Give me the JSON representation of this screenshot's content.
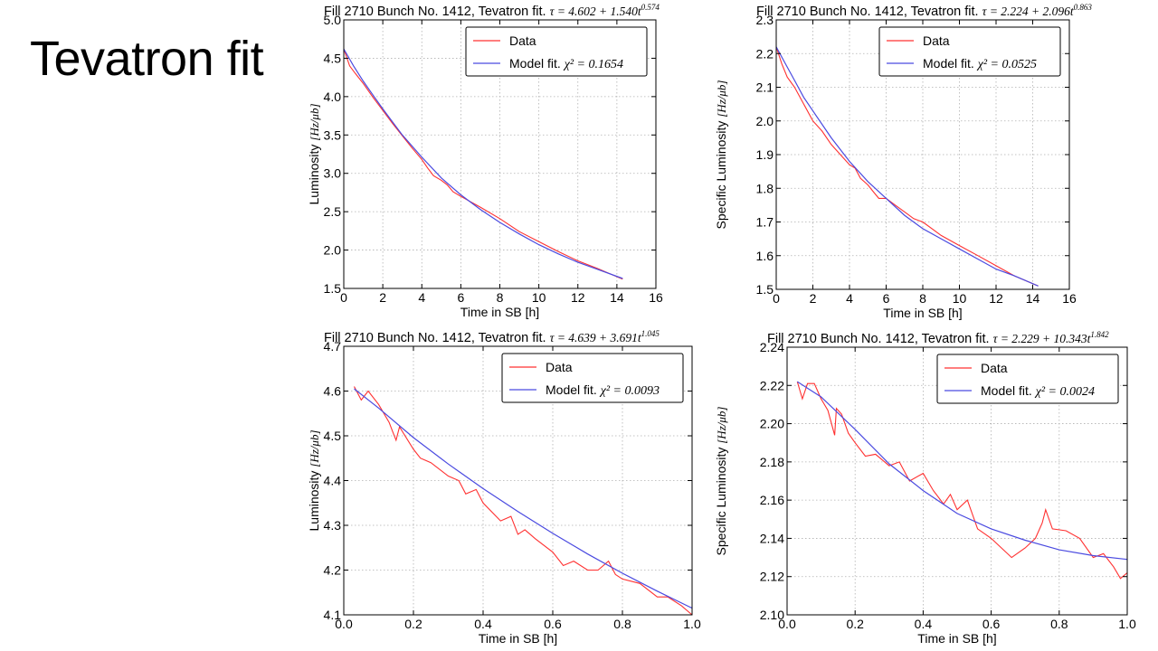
{
  "slide": {
    "title": "Tevatron fit"
  },
  "chart_data": [
    {
      "type": "line",
      "title_text": "Fill 2710 Bunch No. 1412, Tevatron fit.",
      "title_formula": "τ = 4.602 + 1.540t",
      "title_exponent": "0.574",
      "xlabel": "Time in SB [h]",
      "ylabel_text": "Luminosity ",
      "ylabel_unit": "[Hz/μb]",
      "xlim": [
        0,
        16
      ],
      "ylim": [
        1.5,
        5.0
      ],
      "xticks": [
        0,
        2,
        4,
        6,
        8,
        10,
        12,
        14,
        16
      ],
      "yticks": [
        1.5,
        2.0,
        2.5,
        3.0,
        3.5,
        4.0,
        4.5,
        5.0
      ],
      "xtick_labels": [
        "0",
        "2",
        "4",
        "6",
        "8",
        "10",
        "12",
        "14",
        "16"
      ],
      "ytick_labels": [
        "1.5",
        "2.0",
        "2.5",
        "3.0",
        "3.5",
        "4.0",
        "4.5",
        "5.0"
      ],
      "grid": true,
      "legend_position": "top-right",
      "legend": [
        {
          "label": "Data",
          "color": "#ff3030"
        },
        {
          "label": "Model fit. ",
          "math": "χ² = 0.1654",
          "color": "#4a4ae0"
        }
      ],
      "series": [
        {
          "name": "Data",
          "color": "#ff3030",
          "x": [
            0.0,
            0.3,
            0.6,
            1.0,
            1.5,
            2.0,
            2.5,
            3.0,
            3.5,
            4.0,
            4.3,
            4.6,
            5.0,
            5.3,
            5.6,
            6.0,
            7.0,
            8.0,
            9.0,
            10.0,
            11.0,
            12.0,
            13.0,
            14.3
          ],
          "y": [
            4.62,
            4.4,
            4.3,
            4.17,
            3.99,
            3.82,
            3.65,
            3.49,
            3.33,
            3.18,
            3.07,
            2.97,
            2.91,
            2.85,
            2.76,
            2.7,
            2.56,
            2.41,
            2.24,
            2.11,
            1.98,
            1.86,
            1.76,
            1.62
          ]
        },
        {
          "name": "Model fit.",
          "color": "#4a4ae0",
          "x": [
            0.0,
            0.5,
            1.0,
            1.5,
            2.0,
            3.0,
            4.0,
            5.0,
            6.0,
            7.0,
            8.0,
            9.0,
            10.0,
            11.0,
            12.0,
            13.0,
            14.3
          ],
          "y": [
            4.62,
            4.4,
            4.2,
            4.02,
            3.84,
            3.5,
            3.21,
            2.94,
            2.72,
            2.53,
            2.36,
            2.21,
            2.07,
            1.95,
            1.84,
            1.75,
            1.63
          ]
        }
      ]
    },
    {
      "type": "line",
      "title_text": "Fill 2710 Bunch No. 1412, Tevatron fit.",
      "title_formula": "τ = 2.224 + 2.096t",
      "title_exponent": "0.863",
      "xlabel": "Time in SB [h]",
      "ylabel_text": "Specific Luminosity ",
      "ylabel_unit": "[Hz/μb]",
      "xlim": [
        0,
        16
      ],
      "ylim": [
        1.5,
        2.3
      ],
      "xticks": [
        0,
        2,
        4,
        6,
        8,
        10,
        12,
        14,
        16
      ],
      "yticks": [
        1.5,
        1.6,
        1.7,
        1.8,
        1.9,
        2.0,
        2.1,
        2.2,
        2.3
      ],
      "xtick_labels": [
        "0",
        "2",
        "4",
        "6",
        "8",
        "10",
        "12",
        "14",
        "16"
      ],
      "ytick_labels": [
        "1.5",
        "1.6",
        "1.7",
        "1.8",
        "1.9",
        "2.0",
        "2.1",
        "2.2",
        "2.3"
      ],
      "grid": true,
      "legend_position": "top-right",
      "legend": [
        {
          "label": "Data",
          "color": "#ff3030"
        },
        {
          "label": "Model fit. ",
          "math": "χ² = 0.0525",
          "color": "#4a4ae0"
        }
      ],
      "series": [
        {
          "name": "Data",
          "color": "#ff3030",
          "x": [
            0.0,
            0.3,
            0.6,
            1.0,
            1.5,
            2.0,
            2.5,
            3.0,
            3.5,
            4.0,
            4.3,
            4.6,
            5.0,
            5.3,
            5.6,
            6.0,
            6.5,
            7.0,
            7.5,
            8.0,
            9.0,
            10.0,
            11.0,
            12.0,
            13.0,
            14.3
          ],
          "y": [
            2.22,
            2.17,
            2.13,
            2.1,
            2.05,
            2.0,
            1.97,
            1.93,
            1.9,
            1.87,
            1.86,
            1.83,
            1.81,
            1.79,
            1.77,
            1.77,
            1.75,
            1.73,
            1.71,
            1.7,
            1.66,
            1.63,
            1.6,
            1.57,
            1.54,
            1.51
          ]
        },
        {
          "name": "Model fit.",
          "color": "#4a4ae0",
          "x": [
            0.0,
            0.5,
            1.0,
            1.5,
            2.0,
            3.0,
            4.0,
            5.0,
            6.0,
            7.0,
            8.0,
            9.0,
            10.0,
            11.0,
            12.0,
            13.0,
            14.3
          ],
          "y": [
            2.22,
            2.17,
            2.12,
            2.07,
            2.03,
            1.95,
            1.88,
            1.82,
            1.77,
            1.72,
            1.68,
            1.65,
            1.62,
            1.59,
            1.56,
            1.54,
            1.51
          ]
        }
      ]
    },
    {
      "type": "line",
      "title_text": "Fill 2710 Bunch No. 1412, Tevatron fit.",
      "title_formula": "τ = 4.639 + 3.691t",
      "title_exponent": "1.045",
      "xlabel": "Time in SB [h]",
      "ylabel_text": "Luminosity ",
      "ylabel_unit": "[Hz/μb]",
      "xlim": [
        0,
        1.0
      ],
      "ylim": [
        4.1,
        4.7
      ],
      "xticks": [
        0.0,
        0.2,
        0.4,
        0.6,
        0.8,
        1.0
      ],
      "yticks": [
        4.1,
        4.2,
        4.3,
        4.4,
        4.5,
        4.6,
        4.7
      ],
      "xtick_labels": [
        "0.0",
        "0.2",
        "0.4",
        "0.6",
        "0.8",
        "1.0"
      ],
      "ytick_labels": [
        "4.1",
        "4.2",
        "4.3",
        "4.4",
        "4.5",
        "4.6",
        "4.7"
      ],
      "grid": true,
      "legend_position": "top-right",
      "legend": [
        {
          "label": "Data",
          "color": "#ff3030"
        },
        {
          "label": "Model fit. ",
          "math": "χ² = 0.0093",
          "color": "#4a4ae0"
        }
      ],
      "series": [
        {
          "name": "Data",
          "color": "#ff3030",
          "x": [
            0.03,
            0.05,
            0.07,
            0.1,
            0.13,
            0.14,
            0.15,
            0.16,
            0.2,
            0.22,
            0.25,
            0.3,
            0.33,
            0.35,
            0.38,
            0.4,
            0.45,
            0.48,
            0.5,
            0.52,
            0.55,
            0.6,
            0.63,
            0.66,
            0.7,
            0.73,
            0.76,
            0.78,
            0.8,
            0.85,
            0.9,
            0.93,
            0.97,
            1.0
          ],
          "y": [
            4.61,
            4.58,
            4.6,
            4.57,
            4.53,
            4.51,
            4.49,
            4.52,
            4.47,
            4.45,
            4.44,
            4.41,
            4.4,
            4.37,
            4.38,
            4.35,
            4.31,
            4.32,
            4.28,
            4.29,
            4.27,
            4.24,
            4.21,
            4.22,
            4.2,
            4.2,
            4.22,
            4.19,
            4.18,
            4.17,
            4.14,
            4.14,
            4.12,
            4.1
          ]
        },
        {
          "name": "Model fit.",
          "color": "#4a4ae0",
          "x": [
            0.03,
            0.1,
            0.2,
            0.3,
            0.4,
            0.5,
            0.6,
            0.7,
            0.8,
            0.9,
            1.0
          ],
          "y": [
            4.605,
            4.562,
            4.496,
            4.437,
            4.382,
            4.331,
            4.282,
            4.236,
            4.193,
            4.153,
            4.115
          ]
        }
      ]
    },
    {
      "type": "line",
      "title_text": "Fill 2710 Bunch No. 1412, Tevatron fit.",
      "title_formula": "τ = 2.229 + 10.343t",
      "title_exponent": "1.842",
      "xlabel": "Time in SB [h]",
      "ylabel_text": "Specific Luminosity ",
      "ylabel_unit": "[Hz/μb]",
      "xlim": [
        0,
        1.0
      ],
      "ylim": [
        2.1,
        2.24
      ],
      "xticks": [
        0.0,
        0.2,
        0.4,
        0.6,
        0.8,
        1.0
      ],
      "yticks": [
        2.1,
        2.12,
        2.14,
        2.16,
        2.18,
        2.2,
        2.22,
        2.24
      ],
      "xtick_labels": [
        "0.0",
        "0.2",
        "0.4",
        "0.6",
        "0.8",
        "1.0"
      ],
      "ytick_labels": [
        "2.10",
        "2.12",
        "2.14",
        "2.16",
        "2.18",
        "2.20",
        "2.22",
        "2.24"
      ],
      "grid": true,
      "legend_position": "top-right",
      "legend": [
        {
          "label": "Data",
          "color": "#ff3030"
        },
        {
          "label": "Model fit. ",
          "math": "χ² = 0.0024",
          "color": "#4a4ae0"
        }
      ],
      "series": [
        {
          "name": "Data",
          "color": "#ff3030",
          "x": [
            0.03,
            0.045,
            0.06,
            0.08,
            0.1,
            0.12,
            0.14,
            0.145,
            0.16,
            0.18,
            0.2,
            0.23,
            0.26,
            0.3,
            0.33,
            0.36,
            0.4,
            0.43,
            0.46,
            0.48,
            0.5,
            0.53,
            0.56,
            0.6,
            0.63,
            0.66,
            0.7,
            0.73,
            0.75,
            0.76,
            0.78,
            0.82,
            0.86,
            0.9,
            0.93,
            0.96,
            0.98,
            1.0
          ],
          "y": [
            2.222,
            2.213,
            2.221,
            2.221,
            2.213,
            2.207,
            2.194,
            2.208,
            2.205,
            2.195,
            2.19,
            2.183,
            2.184,
            2.178,
            2.18,
            2.17,
            2.174,
            2.165,
            2.158,
            2.163,
            2.155,
            2.16,
            2.145,
            2.14,
            2.135,
            2.13,
            2.135,
            2.14,
            2.148,
            2.155,
            2.145,
            2.144,
            2.14,
            2.13,
            2.132,
            2.125,
            2.119,
            2.122
          ]
        },
        {
          "name": "Model fit.",
          "color": "#4a4ae0",
          "x": [
            0.03,
            0.1,
            0.2,
            0.3,
            0.4,
            0.5,
            0.6,
            0.7,
            0.8,
            0.9,
            1.0
          ],
          "y": [
            2.222,
            2.214,
            2.197,
            2.179,
            2.165,
            2.153,
            2.145,
            2.139,
            2.134,
            2.131,
            2.129
          ]
        }
      ]
    }
  ]
}
